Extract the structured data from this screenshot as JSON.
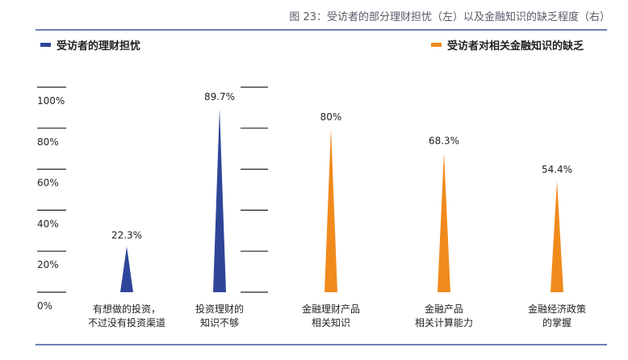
{
  "figure": {
    "title": "图 23：受访者的部分理财担忧（左）以及金融知识的缺乏程度（右）"
  },
  "colors": {
    "left_series": "#2e4599",
    "right_series": "#f08a1c",
    "rule": "#6c7fb6",
    "grid": "#222222"
  },
  "chart_data": [
    {
      "type": "bar",
      "mark_shape": "triangle",
      "series": [
        {
          "name": "受访者的理财担忧",
          "values": [
            22.3,
            89.7
          ]
        }
      ],
      "categories": [
        "有想做的投资，\n不过没有投资渠道",
        "投资理财的\n知识不够"
      ],
      "value_labels": [
        "22.3%",
        "89.7%"
      ],
      "ylim": [
        0,
        100
      ],
      "y_ticks": [
        "0%",
        "20%",
        "40%",
        "60%",
        "80%",
        "100%"
      ],
      "grid": true
    },
    {
      "type": "bar",
      "mark_shape": "triangle",
      "series": [
        {
          "name": "受访者对相关金融知识的缺乏",
          "values": [
            80,
            68.3,
            54.4
          ]
        }
      ],
      "categories": [
        "金融理财产品\n相关知识",
        "金融产品\n相关计算能力",
        "金融经济政策\n的掌握"
      ],
      "value_labels": [
        "80%",
        "68.3%",
        "54.4%"
      ],
      "ylim": [
        0,
        100
      ],
      "grid": true
    }
  ]
}
